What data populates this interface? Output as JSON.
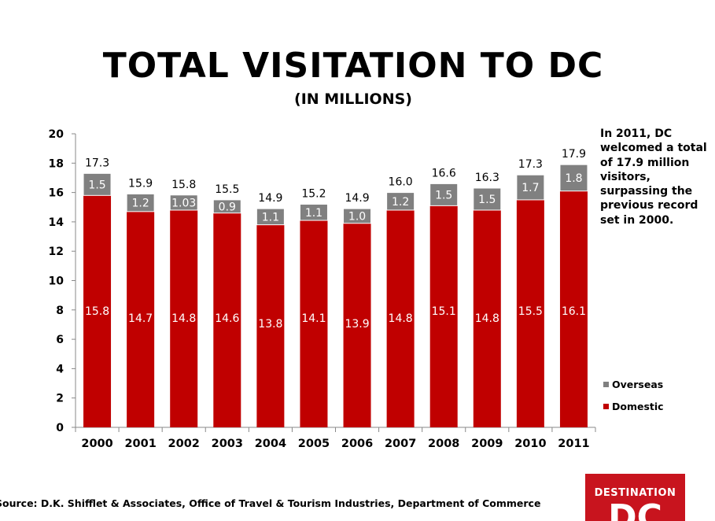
{
  "title": "TOTAL VISITATION TO DC",
  "subtitle": "(IN MILLIONS)",
  "callout": "In 2011, DC welcomed a total of 17.9 million visitors, surpassing the previous record set  in 2000.",
  "source": "Source:  D.K. Shifflet & Associates, Office of Travel & Tourism Industries, Department of Commerce",
  "logo": {
    "top": "DESTINATION",
    "main": "DC"
  },
  "colors": {
    "domestic": "#c00000",
    "overseas": "#808080",
    "logo": "#c8141e"
  },
  "chart_data": {
    "type": "bar",
    "stacked": true,
    "categories": [
      "2000",
      "2001",
      "2002",
      "2003",
      "2004",
      "2005",
      "2006",
      "2007",
      "2008",
      "2009",
      "2010",
      "2011"
    ],
    "series": [
      {
        "name": "Domestic",
        "values": [
          15.8,
          14.7,
          14.8,
          14.6,
          13.8,
          14.1,
          13.9,
          14.8,
          15.1,
          14.8,
          15.5,
          16.1
        ],
        "labels": [
          "15.8",
          "14.7",
          "14.8",
          "14.6",
          "13.8",
          "14.1",
          "13.9",
          "14.8",
          "15.1",
          "14.8",
          "15.5",
          "16.1"
        ]
      },
      {
        "name": "Overseas",
        "values": [
          1.5,
          1.2,
          1.03,
          0.9,
          1.1,
          1.1,
          1.0,
          1.2,
          1.5,
          1.5,
          1.7,
          1.8
        ],
        "labels": [
          "1.5",
          "1.2",
          "1.03",
          "0.9",
          "1.1",
          "1.1",
          "1.0",
          "1.2",
          "1.5",
          "1.5",
          "1.7",
          "1.8"
        ]
      }
    ],
    "totals": [
      "17.3",
      "15.9",
      "15.8",
      "15.5",
      "14.9",
      "15.2",
      "14.9",
      "16.0",
      "16.6",
      "16.3",
      "17.3",
      "17.9"
    ],
    "yticks": [
      "0",
      "2",
      "4",
      "6",
      "8",
      "10",
      "12",
      "14",
      "16",
      "18",
      "20"
    ],
    "ylim": [
      0,
      20
    ],
    "legend": [
      "Overseas",
      "Domestic"
    ],
    "legend_position": "right",
    "grid": false
  }
}
